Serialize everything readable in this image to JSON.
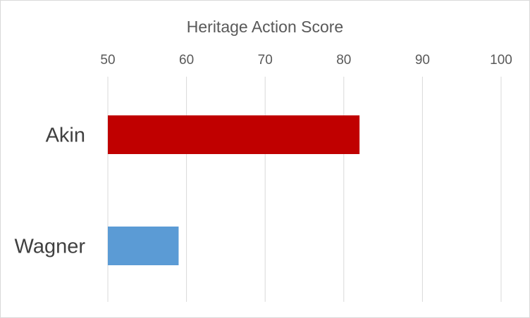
{
  "chart_data": {
    "type": "bar",
    "orientation": "horizontal",
    "title": "",
    "xlabel": "Heritage Action Score",
    "ylabel": "",
    "x_axis_position": "top",
    "xlim": [
      50,
      100
    ],
    "ticks": [
      50,
      60,
      70,
      80,
      90,
      100
    ],
    "tick_labels": [
      "50",
      "60",
      "70",
      "80",
      "90",
      "100"
    ],
    "grid": true,
    "legend": "none",
    "categories": [
      "Akin",
      "Wagner"
    ],
    "values": [
      82,
      59
    ],
    "colors": [
      "#c00000",
      "#5b9bd5"
    ]
  }
}
